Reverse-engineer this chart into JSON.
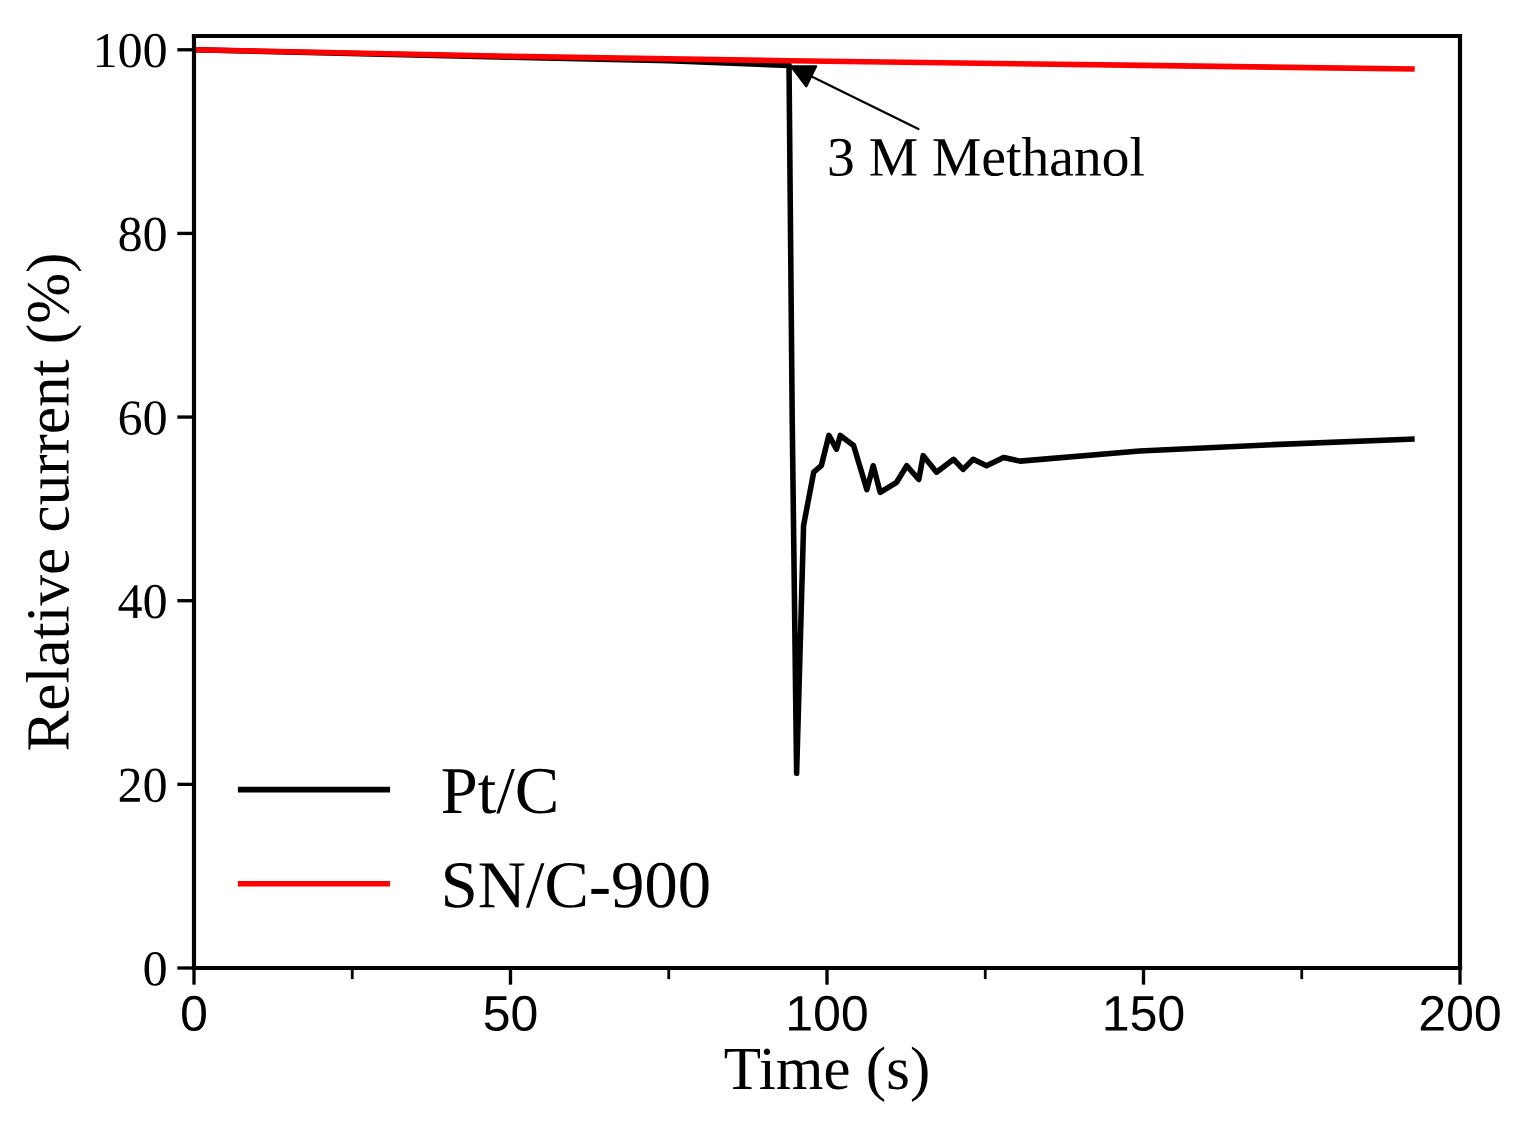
{
  "chart_data": {
    "type": "line",
    "xlabel": "Time (s)",
    "ylabel": "Relative current (%)",
    "xlim": [
      0,
      200
    ],
    "xticks": [
      0,
      50,
      100,
      150,
      200
    ],
    "ylim": [
      0,
      101.5
    ],
    "yticks": [
      0,
      20,
      40,
      60,
      80,
      100
    ],
    "legend": "bottom left",
    "grid": false,
    "line_style": "solid",
    "marker": "none",
    "annotations": [
      {
        "text": "3 M Methanol",
        "x": 94,
        "y": 98.3
      }
    ],
    "series": [
      {
        "name": "Pt/C",
        "color": "#000000",
        "x": [
          0,
          50,
          75,
          94,
          94.5,
          95.2,
          96.3,
          97.9,
          99.1,
          100.3,
          101.5,
          102.1,
          104.2,
          106.3,
          107.3,
          108.4,
          111,
          112.6,
          114.5,
          115.2,
          117.3,
          120,
          121.5,
          123.1,
          125.2,
          127.9,
          130.5,
          149.4,
          170.5,
          192.4
        ],
        "values": [
          100,
          99.2,
          98.8,
          98.3,
          60,
          21.2,
          48.2,
          54.0,
          54.7,
          58.0,
          56.5,
          58.0,
          56.9,
          52.1,
          54.7,
          51.8,
          52.9,
          54.7,
          53.2,
          55.8,
          54.0,
          55.4,
          54.3,
          55.4,
          54.7,
          55.6,
          55.2,
          56.3,
          57.0,
          57.6
        ]
      },
      {
        "name": "SN/C-900",
        "color": "#ff0000",
        "x": [
          0,
          50,
          94,
          150,
          192.4
        ],
        "values": [
          100,
          99.3,
          98.8,
          98.3,
          97.9
        ]
      }
    ]
  }
}
